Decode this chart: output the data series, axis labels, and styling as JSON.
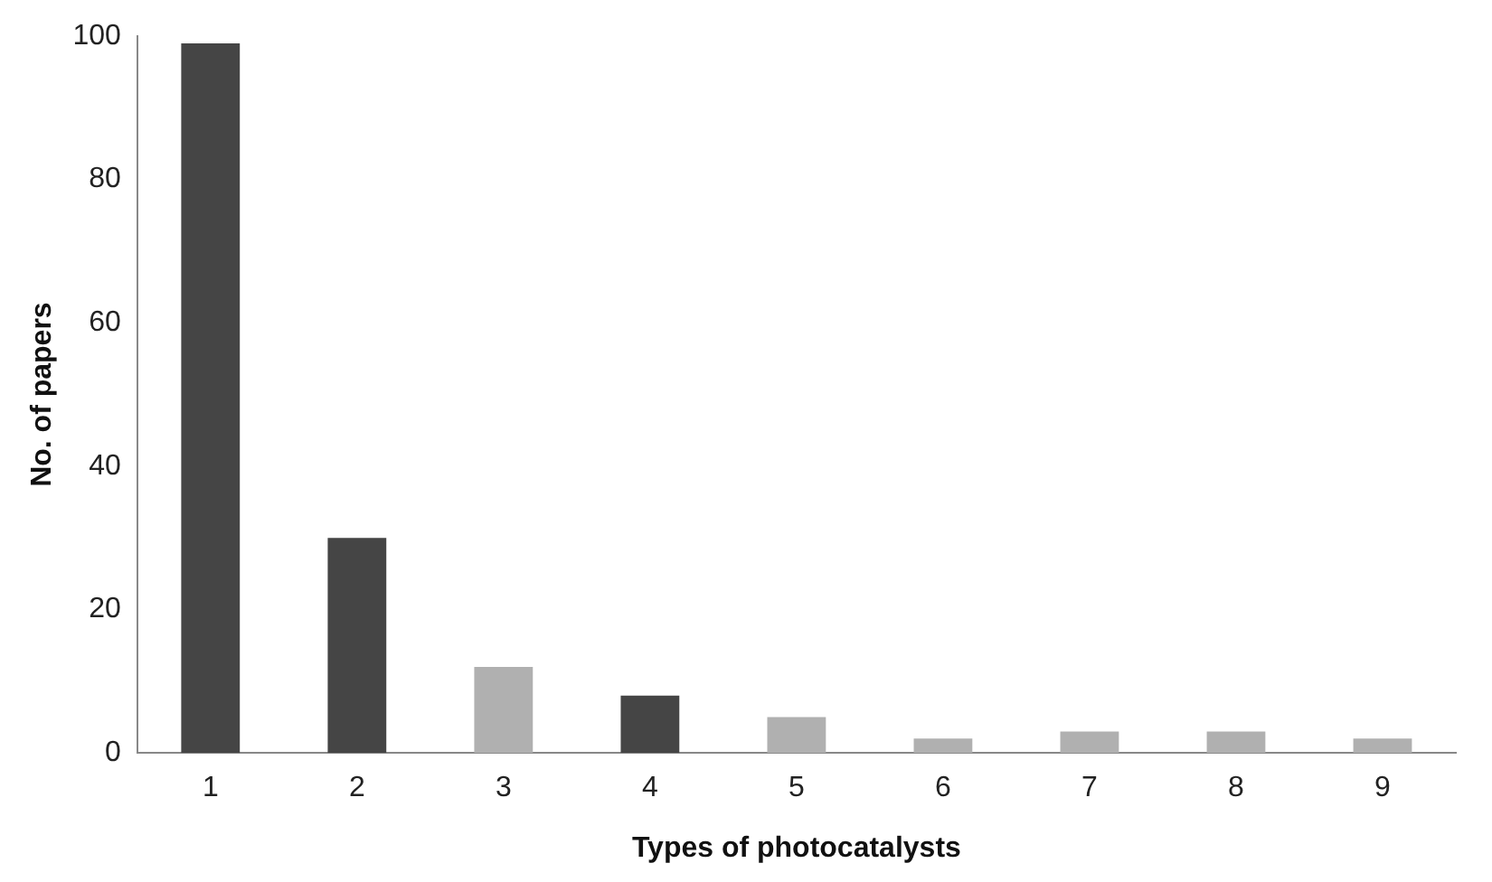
{
  "chart_data": {
    "type": "bar",
    "xlabel": "Types of photocatalysts",
    "ylabel": "No. of papers",
    "categories": [
      "1",
      "2",
      "3",
      "4",
      "5",
      "6",
      "7",
      "8",
      "9"
    ],
    "values": [
      99,
      30,
      12,
      8,
      5,
      2,
      3,
      3,
      2
    ],
    "colors": [
      "#454545",
      "#454545",
      "#b0b0b0",
      "#454545",
      "#b0b0b0",
      "#b0b0b0",
      "#b0b0b0",
      "#b0b0b0",
      "#b0b0b0"
    ],
    "ylim": [
      0,
      100
    ],
    "yticks": [
      0,
      20,
      40,
      60,
      80,
      100
    ],
    "grid": false,
    "legend": false
  }
}
